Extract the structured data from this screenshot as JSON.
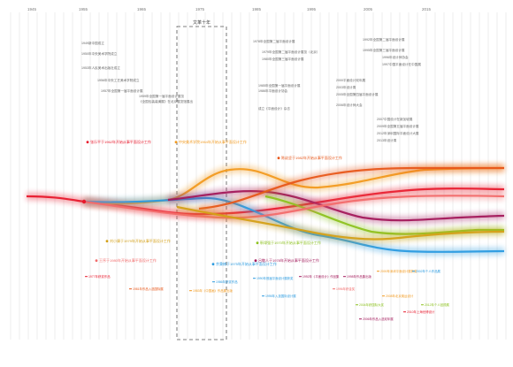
{
  "timeline": {
    "years": [
      "1945",
      "1955",
      "1965",
      "1975",
      "1985",
      "1995",
      "2005",
      "2015"
    ],
    "period_label": "文革十年"
  },
  "top_notes": {
    "left": [
      "1949新中国成立",
      "1950年中央美术学院成立",
      "1953年人民美术出版社成立",
      "1956年中央工艺美术学院成立",
      "1957年全国第一届平面设计展",
      "1959年全国第一届平面设计展览",
      "《全国包装装潢展》在北京展览馆展出"
    ],
    "mid": [
      "1978年全国第二届平面设计展",
      "1979年全国第二届平面设计展览（北京）",
      "1980年全国第三届平面设计展",
      "1985年全国第一届平面设计展",
      "1986年平面设计协会",
      "成立《平面设计》杂志"
    ],
    "right": [
      "1992年全国第二届平面设计展",
      "1995年全国第三届平面设计展",
      "1996年设计师协会",
      "1997中国平面设计在中国展",
      "2000平面设计双年展",
      "2003年设计周",
      "2005年全国第四届平面设计展",
      "2006年设计师大会",
      "2007中国设计在新加坡展",
      "2009年全国第五届平面设计展",
      "2012年深圳国际平面设计大展",
      "2013年设计周"
    ]
  },
  "streams": [
    {
      "label": "张乐平于1962年开始从事平面设计工作",
      "color": "#e8192c"
    },
    {
      "label": "中央美术学院1964年开始从事平面设计工作",
      "color": "#f29a1f"
    },
    {
      "label": "余秉楠于1975年开始从事平面设计工作",
      "color": "#2b9be0"
    },
    {
      "label": "吕敬人于1978年开始从事平面设计工作",
      "color": "#a3195b"
    },
    {
      "label": "陈幼坚于1982年开始从事平面设计工作",
      "color": "#e8571a"
    },
    {
      "label": "靳埭强于1970年开始从事平面设计工作",
      "color": "#8dc21f"
    },
    {
      "label": "王序于1980年开始从事平面设计工作",
      "color": "#f26c6c"
    },
    {
      "label": "刘小康于1979年开始从事平面设计工作",
      "color": "#d4a017"
    }
  ],
  "lower_notes": [
    "1977年获奖作品",
    "1981年作品入选国际展",
    "1983年《中国画》作品集出版",
    "1986年获奖作品",
    "1990年首届平面设计展获奖",
    "1992年《平面设计》作品集",
    "1995年入选国际设计展",
    "1996年获金奖",
    "1998年作品集出版",
    "2000年深圳平面设计展获奖",
    "2002年个人作品展",
    "2004年获国际大奖",
    "2006年作品入选双年展",
    "2008年北京奥运设计",
    "2010年上海世博设计",
    "2012年个人回顾展"
  ]
}
